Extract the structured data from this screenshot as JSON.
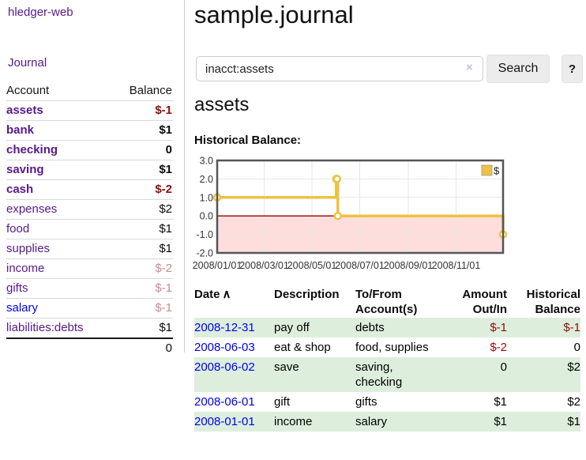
{
  "sidebar": {
    "brand": "hledger-web",
    "nav": {
      "journal": "Journal"
    },
    "columns": {
      "account": "Account",
      "balance": "Balance"
    },
    "accounts": [
      {
        "name": "assets",
        "balance": "$-1"
      },
      {
        "name": "bank",
        "balance": "$1"
      },
      {
        "name": "checking",
        "balance": "0"
      },
      {
        "name": "saving",
        "balance": "$1"
      },
      {
        "name": "cash",
        "balance": "$-2"
      },
      {
        "name": "expenses",
        "balance": "$2"
      },
      {
        "name": "food",
        "balance": "$1"
      },
      {
        "name": "supplies",
        "balance": "$1"
      },
      {
        "name": "income",
        "balance": "$-2"
      },
      {
        "name": "gifts",
        "balance": "$-1"
      },
      {
        "name": "salary",
        "balance": "$-1"
      },
      {
        "name": "liabilities:debts",
        "balance": "$1"
      }
    ],
    "total": "0"
  },
  "main": {
    "title": "sample.journal",
    "search": {
      "value": "inacct:assets",
      "clear_icon": "×",
      "search_button": "Search",
      "help_button": "?"
    },
    "account_heading": "assets",
    "chart_heading": "Historical Balance:"
  },
  "chart_data": {
    "type": "line",
    "title": "Historical Balance:",
    "series": [
      {
        "name": "$",
        "color": "#edc240",
        "step": true,
        "points": [
          [
            "2008-01-01",
            1
          ],
          [
            "2008-06-01",
            2
          ],
          [
            "2008-06-02",
            2
          ],
          [
            "2008-06-03",
            0
          ],
          [
            "2008-12-31",
            -1
          ]
        ]
      }
    ],
    "xlim": [
      "2008-01-01",
      "2008-12-31"
    ],
    "ylim": [
      -2,
      3
    ],
    "x_ticks": [
      "2008/01/01",
      "2008/03/01",
      "2008/05/01",
      "2008/07/01",
      "2008/09/01",
      "2008/11/01"
    ],
    "y_ticks": [
      "3.0",
      "2.0",
      "1.0",
      "0.0",
      "-1.0",
      "-2.0"
    ],
    "grid": true,
    "legend_position": "top-right",
    "negative_region_fill": "#ffdddd",
    "zero_line_color": "#990000",
    "border_color": "#545454"
  },
  "register": {
    "columns": [
      "Date",
      "Description",
      "To/From Account(s)",
      "Amount Out/In",
      "Historical Balance"
    ],
    "sort_icon": "∧",
    "rows": [
      {
        "date": "2008-12-31",
        "description": "pay off",
        "accounts": "debts",
        "amount": "$-1",
        "balance": "$-1"
      },
      {
        "date": "2008-06-03",
        "description": "eat & shop",
        "accounts": "food, supplies",
        "amount": "$-2",
        "balance": "0"
      },
      {
        "date": "2008-06-02",
        "description": "save",
        "accounts": "saving, checking",
        "amount": "0",
        "balance": "$2"
      },
      {
        "date": "2008-06-01",
        "description": "gift",
        "accounts": "gifts",
        "amount": "$1",
        "balance": "$2"
      },
      {
        "date": "2008-01-01",
        "description": "income",
        "accounts": "salary",
        "amount": "$1",
        "balance": "$1"
      }
    ]
  }
}
